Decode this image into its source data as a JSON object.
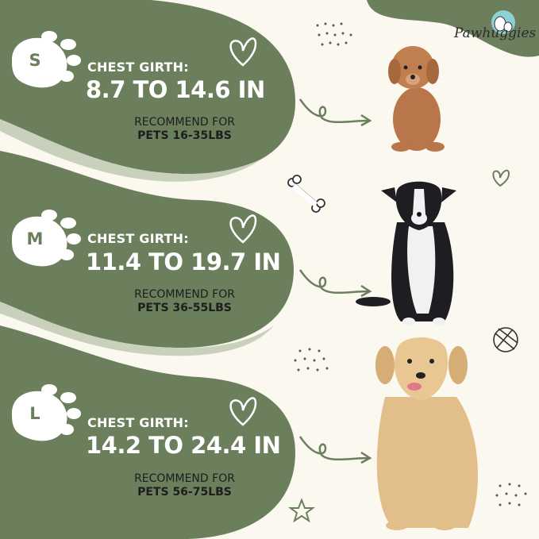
{
  "brand": {
    "logo_text": "Pawhuggies"
  },
  "colors": {
    "green": "#6b7f5c",
    "cream": "#fbf8ef",
    "text_dark": "#1d1d1d"
  },
  "sizes": [
    {
      "letter": "S",
      "label": "CHEST GIRTH:",
      "range": "8.7 TO 14.6 IN",
      "recommend": "RECOMMEND FOR",
      "pets": "PETS 16-35LBS",
      "dog": "toy-poodle"
    },
    {
      "letter": "M",
      "label": "CHEST GIRTH:",
      "range": "11.4 TO 19.7 IN",
      "recommend": "RECOMMEND FOR",
      "pets": "PETS 36-55LBS",
      "dog": "border-collie"
    },
    {
      "letter": "L",
      "label": "CHEST GIRTH:",
      "range": "14.2 TO 24.4 IN",
      "recommend": "RECOMMEND FOR",
      "pets": "PETS 56-75LBS",
      "dog": "golden-retriever"
    }
  ],
  "icons": [
    "paw-icon",
    "heart-icon",
    "arrow-icon",
    "bone-icon",
    "yarn-ball-icon",
    "star-icon",
    "dots-icon"
  ]
}
